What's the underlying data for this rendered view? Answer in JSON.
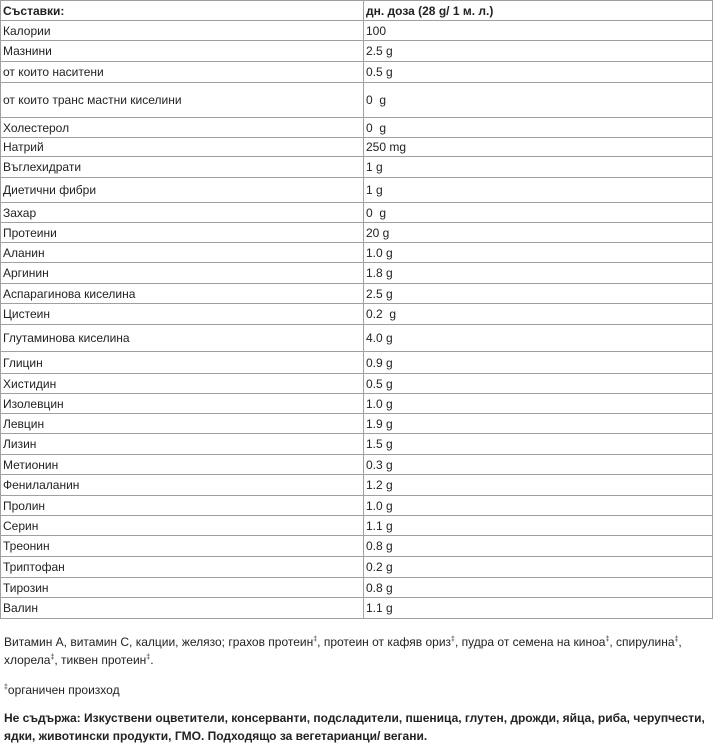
{
  "table": {
    "header": [
      "Съставки:",
      "дн. доза (28 g/ 1 м. л.)"
    ],
    "rows": [
      [
        "Калории",
        "100"
      ],
      [
        "Мазнини",
        "2.5 g"
      ],
      [
        "от които наситени",
        "0.5 g"
      ],
      [
        "от които транс мастни киселини",
        "0  g"
      ],
      [
        "Холестерол",
        "0  g"
      ],
      [
        "Натрий",
        "250 mg"
      ],
      [
        "Въглехидрати",
        "1 g"
      ],
      [
        "Диетични фибри",
        "1 g"
      ],
      [
        "Захар",
        "0  g"
      ],
      [
        "Протеини",
        "20 g"
      ],
      [
        "Аланин",
        "1.0 g"
      ],
      [
        "Аргинин",
        "1.8 g"
      ],
      [
        "Аспарагинова киселина",
        "2.5 g"
      ],
      [
        "Цистеин",
        "0.2  g"
      ],
      [
        "Глутаминова киселина",
        "4.0 g"
      ],
      [
        "Глицин",
        "0.9 g"
      ],
      [
        "Хистидин",
        "0.5 g"
      ],
      [
        "Изолевцин",
        "1.0 g"
      ],
      [
        "Левцин",
        "1.9 g"
      ],
      [
        "Лизин",
        "1.5 g"
      ],
      [
        "Метионин",
        "0.3 g"
      ],
      [
        "Фенилаланин",
        "1.2 g"
      ],
      [
        "Пролин",
        "1.0 g"
      ],
      [
        "Серин",
        "1.1 g"
      ],
      [
        "Треонин",
        "0.8 g"
      ],
      [
        "Триптофан",
        "0.2 g"
      ],
      [
        "Тирозин",
        "0.8 g"
      ],
      [
        "Валин",
        "1.1 g"
      ]
    ]
  },
  "ingredients": [
    "Витамин А, витамин С, калции, желязо; грахов протеин",
    "‡",
    ", протеин от кафяв ориз",
    "‡",
    ", пудра от семена на киноа",
    "‡",
    ", спирулина",
    "‡",
    ", хлорела",
    "‡",
    ", тиквен протеин",
    "‡",
    "."
  ],
  "footnote": [
    "‡",
    "органичен произход"
  ],
  "notice": "Не съдържа: Изкуствени оцветители, консерванти, подсладители, пшеница, глутен, дрожди, яйца, риба, черупчести, ядки, животински продукти, ГМО. Подходящо за вегетарианци/ вегани."
}
